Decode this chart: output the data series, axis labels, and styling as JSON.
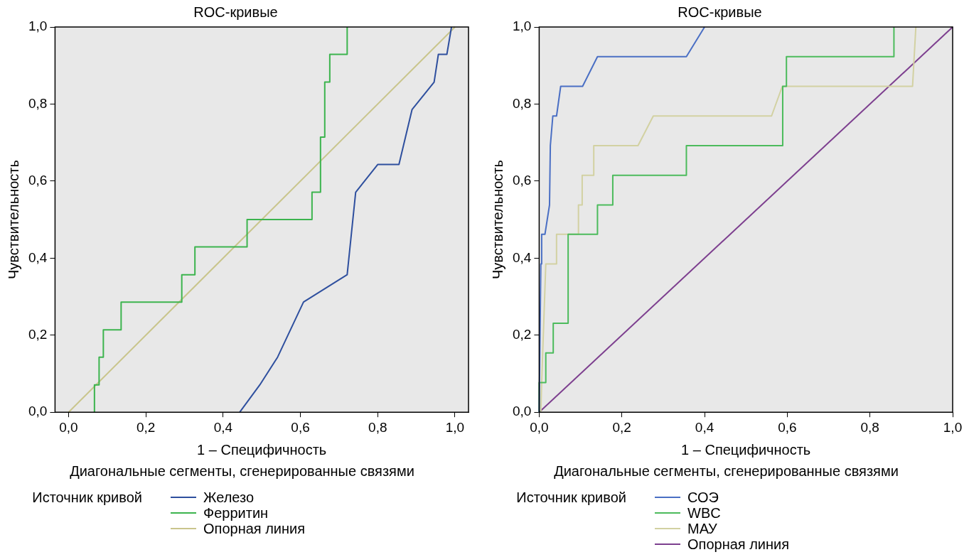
{
  "chart_data": [
    {
      "type": "line",
      "title": "ROC-кривые",
      "xlabel": "1 – Специфичность",
      "ylabel": "Чувствительность",
      "annotations": [
        "Диагональные сегменты, сгенерированные связями"
      ],
      "legend_title": "Источник кривой",
      "legend": "bottom",
      "marker": "none",
      "xlim": [
        -0.035,
        1.035
      ],
      "ylim": [
        0,
        1
      ],
      "xticks": [
        {
          "value": 0,
          "label": "0,0"
        },
        {
          "value": 0.2,
          "label": "0,2"
        },
        {
          "value": 0.4,
          "label": "0,4"
        },
        {
          "value": 0.6,
          "label": "0,6"
        },
        {
          "value": 0.8,
          "label": "0,8"
        },
        {
          "value": 1,
          "label": "1,0"
        }
      ],
      "yticks": [
        {
          "value": 0,
          "label": "0,0"
        },
        {
          "value": 0.2,
          "label": "0,2"
        },
        {
          "value": 0.4,
          "label": "0,4"
        },
        {
          "value": 0.6,
          "label": "0,6"
        },
        {
          "value": 0.8,
          "label": "0,8"
        },
        {
          "value": 1,
          "label": "1,0"
        }
      ],
      "series": [
        {
          "name": "Железо",
          "color": "#2e4f9e",
          "x": [
            0.443,
            0.495,
            0.541,
            0.608,
            0.721,
            0.743,
            0.8,
            0.855,
            0.889,
            0.946,
            0.957,
            0.979,
            0.991
          ],
          "values": [
            0,
            0.071,
            0.143,
            0.286,
            0.357,
            0.571,
            0.643,
            0.643,
            0.786,
            0.857,
            0.929,
            0.929,
            1
          ]
        },
        {
          "name": "Ферритин",
          "color": "#3cb44e",
          "x": [
            0.067,
            0.067,
            0.079,
            0.079,
            0.09,
            0.09,
            0.136,
            0.136,
            0.293,
            0.293,
            0.327,
            0.327,
            0.462,
            0.462,
            0.63,
            0.63,
            0.652,
            0.652,
            0.663,
            0.663,
            0.676,
            0.676,
            0.721,
            0.721
          ],
          "values": [
            0,
            0.071,
            0.071,
            0.143,
            0.143,
            0.214,
            0.214,
            0.286,
            0.286,
            0.357,
            0.357,
            0.429,
            0.429,
            0.5,
            0.5,
            0.571,
            0.571,
            0.714,
            0.714,
            0.857,
            0.857,
            0.929,
            0.929,
            1
          ]
        },
        {
          "name": "Опорная линия",
          "color": "#c9c58c",
          "x": [
            0,
            1
          ],
          "values": [
            0,
            1
          ]
        }
      ]
    },
    {
      "type": "line",
      "title": "ROC-кривые",
      "xlabel": "1 – Специфичность",
      "ylabel": "Чувствительность",
      "annotations": [
        "Диагональные сегменты, сгенерированные связями"
      ],
      "legend_title": "Источник кривой",
      "legend": "bottom",
      "marker": "none",
      "xlim": [
        0,
        1
      ],
      "ylim": [
        0,
        1
      ],
      "xticks": [
        {
          "value": 0,
          "label": "0,0"
        },
        {
          "value": 0.2,
          "label": "0,2"
        },
        {
          "value": 0.4,
          "label": "0,4"
        },
        {
          "value": 0.6,
          "label": "0,6"
        },
        {
          "value": 0.8,
          "label": "0,8"
        },
        {
          "value": 1,
          "label": "1,0"
        }
      ],
      "yticks": [
        {
          "value": 0,
          "label": "0,0"
        },
        {
          "value": 0.2,
          "label": "0,2"
        },
        {
          "value": 0.4,
          "label": "0,4"
        },
        {
          "value": 0.6,
          "label": "0,6"
        },
        {
          "value": 0.8,
          "label": "0,8"
        },
        {
          "value": 1,
          "label": "1,0"
        }
      ],
      "series": [
        {
          "name": "СОЭ",
          "color": "#4a6fc4",
          "x": [
            0,
            0.004,
            0.006,
            0.006,
            0.014,
            0.025,
            0.027,
            0.033,
            0.042,
            0.052,
            0.105,
            0.141,
            0.356,
            0.4
          ],
          "values": [
            0,
            0.385,
            0.385,
            0.462,
            0.462,
            0.538,
            0.692,
            0.769,
            0.769,
            0.846,
            0.846,
            0.923,
            0.923,
            1
          ]
        },
        {
          "name": "WBC",
          "color": "#4cbb5c",
          "x": [
            0,
            0,
            0.016,
            0.016,
            0.034,
            0.034,
            0.07,
            0.07,
            0.141,
            0.141,
            0.178,
            0.178,
            0.356,
            0.356,
            0.589,
            0.589,
            0.598,
            0.598,
            0.858,
            0.858
          ],
          "values": [
            0,
            0.077,
            0.077,
            0.154,
            0.154,
            0.231,
            0.231,
            0.462,
            0.462,
            0.538,
            0.538,
            0.615,
            0.615,
            0.692,
            0.692,
            0.846,
            0.846,
            0.923,
            0.923,
            1
          ]
        },
        {
          "name": "МАУ",
          "color": "#d2d1a2",
          "x": [
            0.004,
            0.006,
            0.016,
            0.042,
            0.042,
            0.095,
            0.095,
            0.104,
            0.104,
            0.132,
            0.132,
            0.239,
            0.276,
            0.562,
            0.588,
            0.903,
            0.911
          ],
          "values": [
            0,
            0.077,
            0.385,
            0.385,
            0.462,
            0.462,
            0.538,
            0.538,
            0.615,
            0.615,
            0.692,
            0.692,
            0.769,
            0.769,
            0.846,
            0.846,
            1
          ]
        },
        {
          "name": "Опорная линия",
          "color": "#7d3f8f",
          "x": [
            0,
            1
          ],
          "values": [
            0,
            1
          ]
        }
      ]
    }
  ]
}
